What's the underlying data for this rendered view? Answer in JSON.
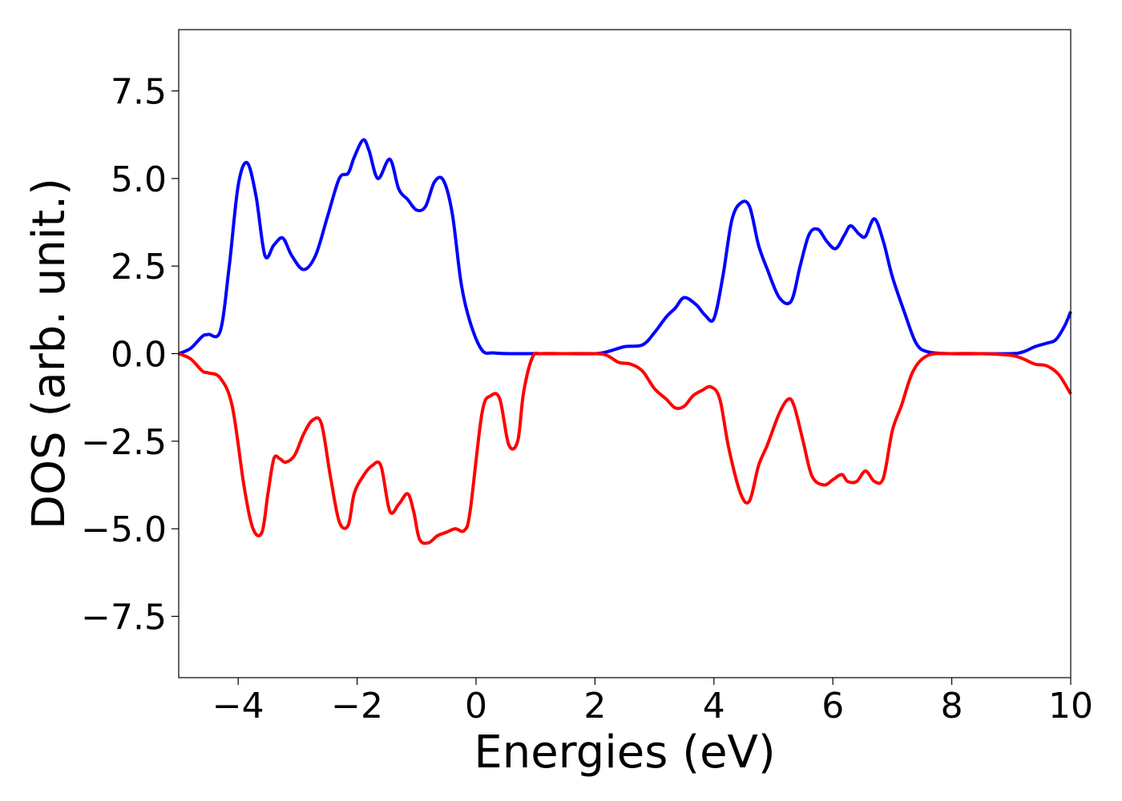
{
  "chart_data": {
    "type": "line",
    "title": "",
    "xlabel": "Energies (eV)",
    "ylabel": "DOS (arb. unit.)",
    "xlim": [
      -5,
      10
    ],
    "ylim": [
      -9.25,
      9.25
    ],
    "x_ticks": [
      -4,
      -2,
      0,
      2,
      4,
      6,
      8,
      10
    ],
    "x_tick_labels": [
      "−4",
      "−2",
      "0",
      "2",
      "4",
      "6",
      "8",
      "10"
    ],
    "y_ticks": [
      -7.5,
      -5.0,
      -2.5,
      0.0,
      2.5,
      5.0,
      7.5
    ],
    "y_tick_labels": [
      "−7.5",
      "−5.0",
      "−2.5",
      "0.0",
      "2.5",
      "5.0",
      "7.5"
    ],
    "grid": false,
    "legend": "none",
    "series": [
      {
        "color": "#0000ff",
        "x": [
          -5.0,
          -4.8,
          -4.6,
          -4.5,
          -4.3,
          -4.15,
          -4.0,
          -3.85,
          -3.7,
          -3.55,
          -3.4,
          -3.25,
          -3.1,
          -2.9,
          -2.7,
          -2.5,
          -2.3,
          -2.15,
          -2.05,
          -1.9,
          -1.8,
          -1.65,
          -1.45,
          -1.3,
          -1.15,
          -1.0,
          -0.85,
          -0.7,
          -0.55,
          -0.4,
          -0.25,
          -0.1,
          0.1,
          0.3,
          0.6,
          1.0,
          1.5,
          2.0,
          2.2,
          2.5,
          2.8,
          3.0,
          3.2,
          3.35,
          3.5,
          3.7,
          3.85,
          4.0,
          4.15,
          4.3,
          4.45,
          4.6,
          4.75,
          4.9,
          5.1,
          5.3,
          5.45,
          5.6,
          5.75,
          5.9,
          6.05,
          6.2,
          6.3,
          6.45,
          6.55,
          6.7,
          6.85,
          7.0,
          7.2,
          7.4,
          7.6,
          8.0,
          8.5,
          9.0,
          9.2,
          9.4,
          9.6,
          9.75,
          9.9,
          10.0
        ],
        "y": [
          0.0,
          0.15,
          0.5,
          0.55,
          0.65,
          2.5,
          4.8,
          5.45,
          4.5,
          2.8,
          3.1,
          3.3,
          2.8,
          2.4,
          2.8,
          3.9,
          5.0,
          5.15,
          5.6,
          6.1,
          5.8,
          5.0,
          5.55,
          4.7,
          4.4,
          4.1,
          4.2,
          4.9,
          4.95,
          4.0,
          2.0,
          0.9,
          0.1,
          0.02,
          0.0,
          0.0,
          0.0,
          0.0,
          0.05,
          0.2,
          0.25,
          0.6,
          1.05,
          1.3,
          1.6,
          1.4,
          1.1,
          1.0,
          2.2,
          3.8,
          4.3,
          4.2,
          3.1,
          2.4,
          1.6,
          1.5,
          2.5,
          3.4,
          3.55,
          3.2,
          3.0,
          3.4,
          3.65,
          3.4,
          3.35,
          3.85,
          3.2,
          2.2,
          1.2,
          0.3,
          0.05,
          0.0,
          0.0,
          0.0,
          0.05,
          0.2,
          0.3,
          0.4,
          0.8,
          1.2
        ]
      },
      {
        "color": "#ff0000",
        "x": [
          -5.0,
          -4.8,
          -4.6,
          -4.5,
          -4.3,
          -4.1,
          -3.9,
          -3.75,
          -3.6,
          -3.5,
          -3.4,
          -3.3,
          -3.2,
          -3.05,
          -2.9,
          -2.75,
          -2.6,
          -2.45,
          -2.3,
          -2.15,
          -2.05,
          -1.9,
          -1.75,
          -1.6,
          -1.45,
          -1.3,
          -1.15,
          -1.05,
          -0.95,
          -0.8,
          -0.65,
          -0.5,
          -0.35,
          -0.2,
          -0.1,
          0.1,
          0.25,
          0.4,
          0.55,
          0.7,
          0.8,
          0.95,
          1.1,
          1.5,
          2.0,
          2.2,
          2.4,
          2.6,
          2.8,
          3.0,
          3.2,
          3.35,
          3.5,
          3.65,
          3.8,
          3.95,
          4.1,
          4.25,
          4.45,
          4.6,
          4.75,
          4.9,
          5.1,
          5.25,
          5.35,
          5.5,
          5.65,
          5.85,
          6.0,
          6.15,
          6.25,
          6.4,
          6.55,
          6.7,
          6.85,
          7.0,
          7.15,
          7.35,
          7.6,
          8.0,
          8.5,
          9.0,
          9.2,
          9.4,
          9.6,
          9.8,
          10.0
        ],
        "y": [
          0.0,
          -0.15,
          -0.5,
          -0.55,
          -0.7,
          -1.5,
          -3.8,
          -5.0,
          -5.1,
          -4.0,
          -3.0,
          -3.0,
          -3.1,
          -2.9,
          -2.3,
          -1.9,
          -2.0,
          -3.5,
          -4.8,
          -4.9,
          -4.0,
          -3.5,
          -3.2,
          -3.2,
          -4.5,
          -4.3,
          -4.0,
          -4.5,
          -5.3,
          -5.4,
          -5.2,
          -5.1,
          -5.0,
          -5.05,
          -4.5,
          -1.7,
          -1.2,
          -1.3,
          -2.6,
          -2.5,
          -1.1,
          -0.1,
          0.0,
          0.0,
          0.0,
          -0.05,
          -0.25,
          -0.3,
          -0.5,
          -1.0,
          -1.3,
          -1.55,
          -1.5,
          -1.2,
          -1.05,
          -0.95,
          -1.3,
          -2.7,
          -4.0,
          -4.2,
          -3.2,
          -2.6,
          -1.7,
          -1.3,
          -1.5,
          -2.5,
          -3.5,
          -3.75,
          -3.6,
          -3.45,
          -3.65,
          -3.65,
          -3.35,
          -3.65,
          -3.55,
          -2.2,
          -1.5,
          -0.5,
          -0.05,
          0.0,
          0.0,
          -0.05,
          -0.15,
          -0.3,
          -0.35,
          -0.6,
          -1.15
        ]
      }
    ]
  }
}
